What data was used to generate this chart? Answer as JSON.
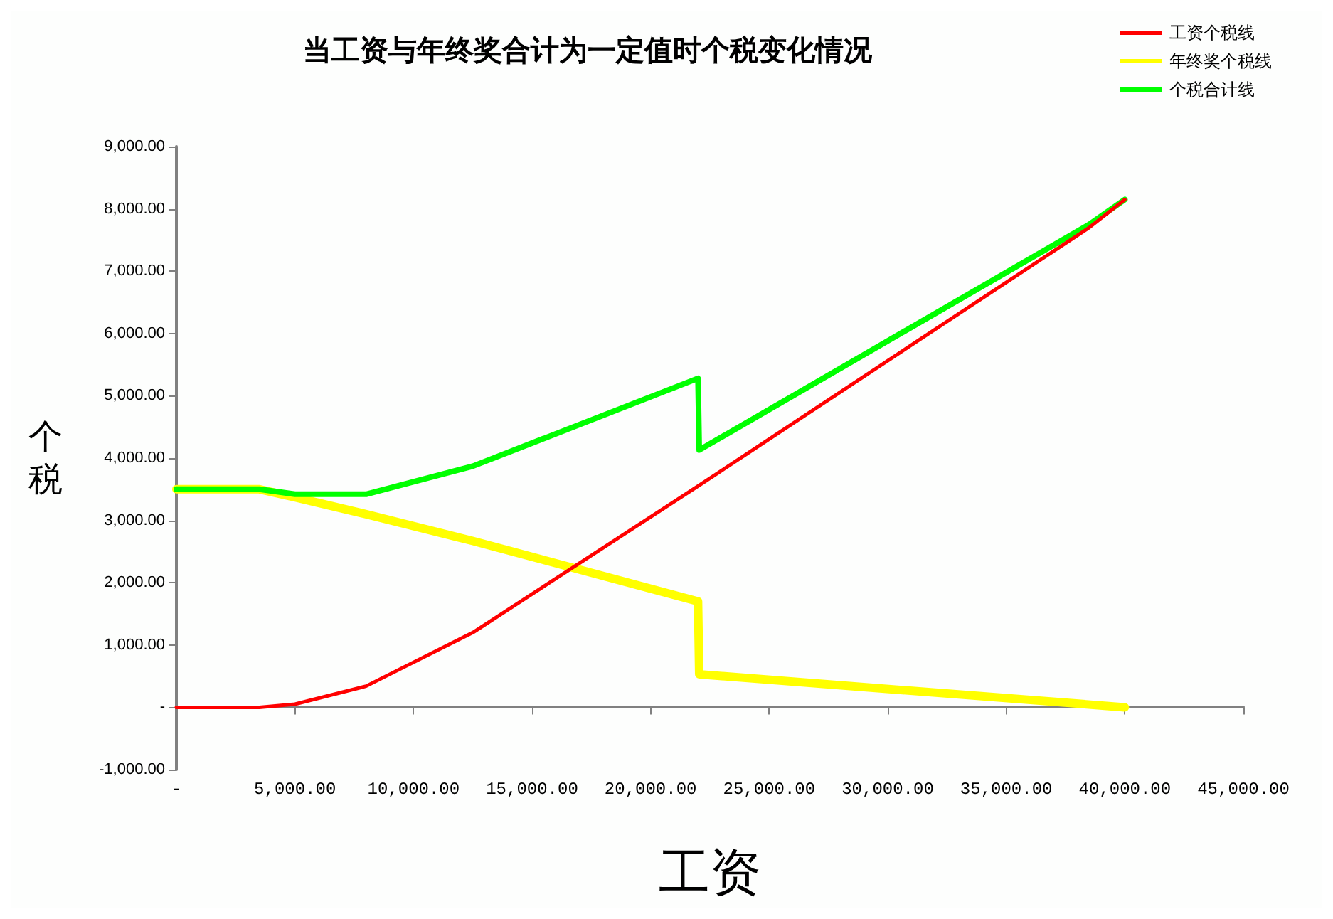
{
  "chart_data": {
    "type": "line",
    "title": "当工资与年终奖合计为一定值时个税变化情况",
    "xlabel": "工资",
    "ylabel": "个税",
    "xlim": [
      0,
      45000
    ],
    "xticks": [
      {
        "value": 0,
        "label": "-"
      },
      {
        "value": 5000,
        "label": "5,000.00"
      },
      {
        "value": 10000,
        "label": "10,000.00"
      },
      {
        "value": 15000,
        "label": "15,000.00"
      },
      {
        "value": 20000,
        "label": "20,000.00"
      },
      {
        "value": 25000,
        "label": "25,000.00"
      },
      {
        "value": 30000,
        "label": "30,000.00"
      },
      {
        "value": 35000,
        "label": "35,000.00"
      },
      {
        "value": 40000,
        "label": "40,000.00"
      },
      {
        "value": 45000,
        "label": "45,000.00"
      }
    ],
    "ylim": [
      -1000,
      9000
    ],
    "yticks": [
      {
        "value": -1000,
        "label": "-1,000.00"
      },
      {
        "value": 0,
        "label": "-"
      },
      {
        "value": 1000,
        "label": "1,000.00"
      },
      {
        "value": 2000,
        "label": "2,000.00"
      },
      {
        "value": 3000,
        "label": "3,000.00"
      },
      {
        "value": 4000,
        "label": "4,000.00"
      },
      {
        "value": 5000,
        "label": "5,000.00"
      },
      {
        "value": 6000,
        "label": "6,000.00"
      },
      {
        "value": 7000,
        "label": "7,000.00"
      },
      {
        "value": 8000,
        "label": "8,000.00"
      },
      {
        "value": 9000,
        "label": "9,000.00"
      }
    ],
    "legend": "top right",
    "marker": "none",
    "line_style": "solid",
    "series": [
      {
        "name": "工资个税线",
        "color": "#ff0000",
        "x": [
          0,
          3500,
          5000,
          8000,
          12500,
          22000,
          38500,
          40000
        ],
        "values": [
          0,
          0,
          50,
          340,
          1200,
          3550,
          7700,
          8150
        ]
      },
      {
        "name": "年终奖个税线",
        "color": "#ffff00",
        "x": [
          0,
          3500,
          5000,
          8000,
          12500,
          22000,
          22050,
          40000
        ],
        "values": [
          3500,
          3500,
          3370,
          3100,
          2670,
          1700,
          530,
          0
        ]
      },
      {
        "name": "个税合计线",
        "color": "#00ff00",
        "x": [
          0,
          3500,
          5000,
          8000,
          12500,
          22000,
          22050,
          38500,
          40000
        ],
        "values": [
          3500,
          3500,
          3420,
          3420,
          3870,
          5280,
          4130,
          7750,
          8150
        ]
      }
    ]
  }
}
